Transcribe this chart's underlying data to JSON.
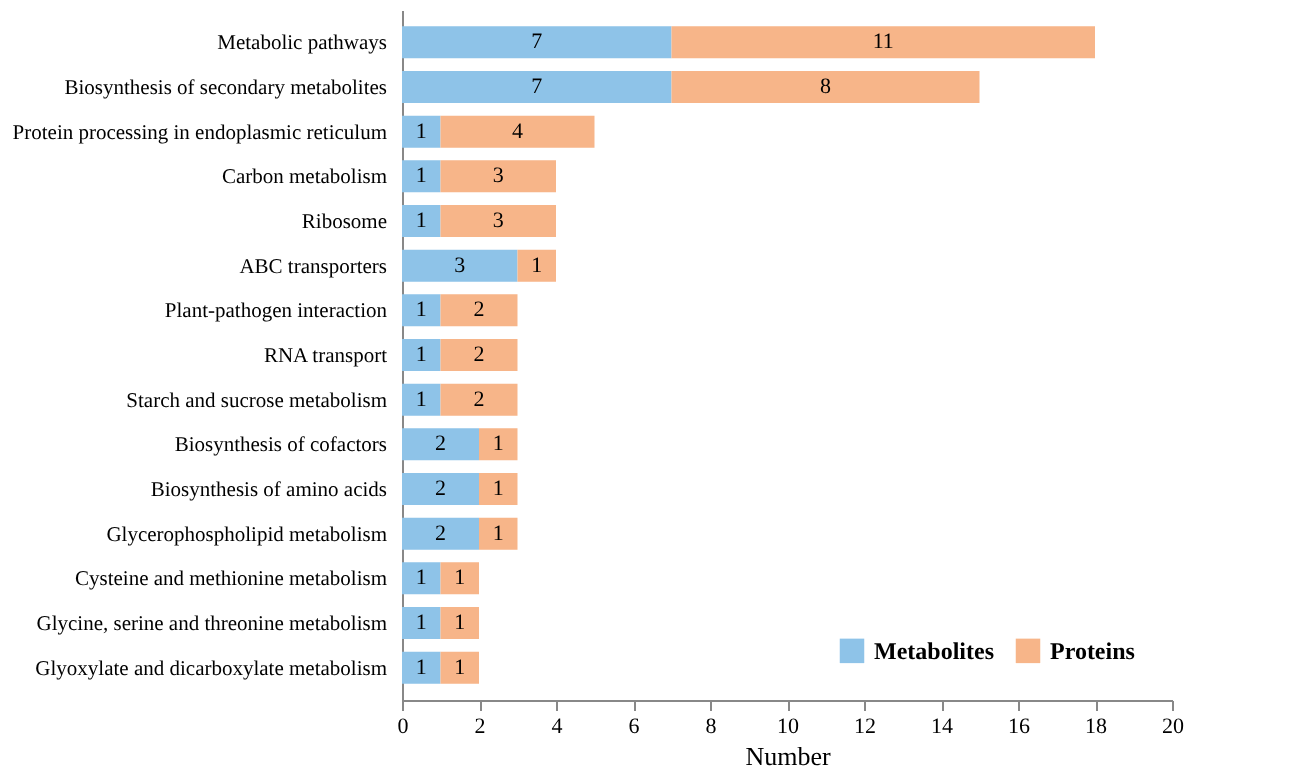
{
  "chart_data": {
    "type": "bar",
    "orientation": "horizontal",
    "stacked": true,
    "xlabel": "Number",
    "categories": [
      "Metabolic pathways",
      "Biosynthesis of secondary metabolites",
      "Protein processing in endoplasmic reticulum",
      "Carbon metabolism",
      "Ribosome",
      "ABC transporters",
      "Plant-pathogen interaction",
      "RNA transport",
      "Starch and sucrose metabolism",
      "Biosynthesis of cofactors",
      "Biosynthesis of amino acids",
      "Glycerophospholipid metabolism",
      "Cysteine and methionine metabolism",
      "Glycine, serine and threonine metabolism",
      "Glyoxylate and dicarboxylate metabolism"
    ],
    "series": [
      {
        "name": "Metabolites",
        "color": "#8ec3e8",
        "values": [
          7,
          7,
          1,
          1,
          1,
          3,
          1,
          1,
          1,
          2,
          2,
          2,
          1,
          1,
          1
        ]
      },
      {
        "name": "Proteins",
        "color": "#f7b589",
        "values": [
          11,
          8,
          4,
          3,
          3,
          1,
          2,
          2,
          2,
          1,
          1,
          1,
          1,
          1,
          1
        ]
      }
    ],
    "xlim": [
      0,
      20
    ],
    "xticks": [
      0,
      2,
      4,
      6,
      8,
      10,
      12,
      14,
      16,
      18,
      20
    ],
    "data_labels": true,
    "grid": false,
    "legend": "bottom right"
  }
}
